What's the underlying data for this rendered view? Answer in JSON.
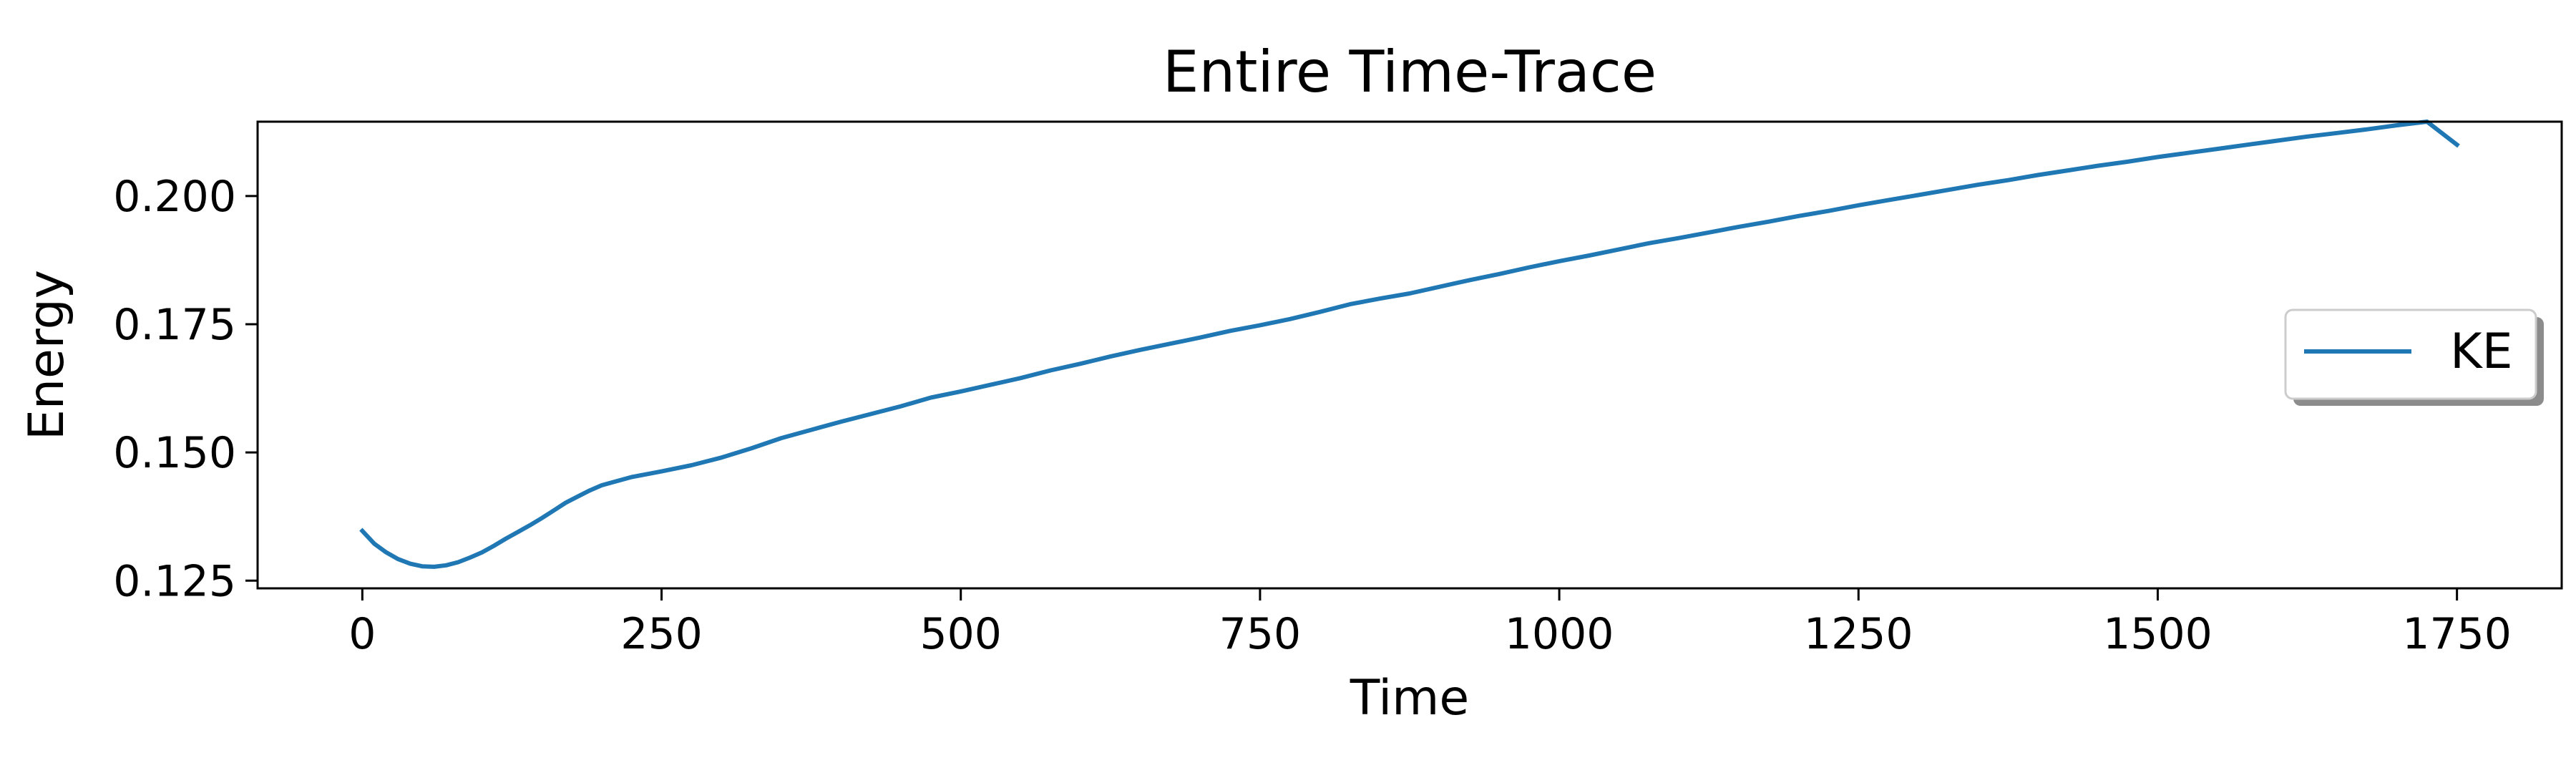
{
  "chart_data": {
    "type": "line",
    "title": "Entire Time-Trace",
    "xlabel": "Time",
    "ylabel": "Energy",
    "xlim": [
      -87.5,
      1837.5
    ],
    "ylim": [
      0.1235,
      0.2145
    ],
    "xticks": [
      0,
      250,
      500,
      750,
      1000,
      1250,
      1500,
      1750
    ],
    "xtick_labels": [
      "0",
      "250",
      "500",
      "750",
      "1000",
      "1250",
      "1500",
      "1750"
    ],
    "yticks": [
      0.125,
      0.15,
      0.175,
      0.2
    ],
    "ytick_labels": [
      "0.125",
      "0.150",
      "0.175",
      "0.200"
    ],
    "grid": false,
    "legend": {
      "placement": "center-right",
      "entries": [
        "KE"
      ]
    },
    "series": [
      {
        "name": "KE",
        "color": "#1f77b4",
        "x": [
          0,
          10,
          20,
          30,
          40,
          50,
          60,
          70,
          80,
          90,
          100,
          110,
          120,
          130,
          140,
          150,
          160,
          170,
          180,
          190,
          200,
          225,
          250,
          275,
          300,
          325,
          350,
          375,
          400,
          425,
          450,
          475,
          500,
          525,
          550,
          575,
          600,
          625,
          650,
          675,
          700,
          725,
          750,
          775,
          800,
          825,
          850,
          875,
          900,
          925,
          950,
          975,
          1000,
          1025,
          1050,
          1075,
          1100,
          1125,
          1150,
          1175,
          1200,
          1225,
          1250,
          1275,
          1300,
          1325,
          1350,
          1375,
          1400,
          1425,
          1450,
          1475,
          1500,
          1525,
          1550,
          1575,
          1600,
          1625,
          1650,
          1675,
          1700,
          1725,
          1750
        ],
        "y": [
          0.1347,
          0.1322,
          0.1305,
          0.1292,
          0.1283,
          0.1278,
          0.1277,
          0.128,
          0.1286,
          0.1295,
          0.1305,
          0.1318,
          0.1332,
          0.1345,
          0.1358,
          0.1372,
          0.1387,
          0.1402,
          0.1414,
          0.1426,
          0.1436,
          0.1452,
          0.1463,
          0.1475,
          0.149,
          0.1508,
          0.1528,
          0.1544,
          0.156,
          0.1575,
          0.159,
          0.1607,
          0.1619,
          0.1632,
          0.1645,
          0.166,
          0.1673,
          0.1687,
          0.17,
          0.1712,
          0.1724,
          0.1737,
          0.1748,
          0.176,
          0.1774,
          0.1789,
          0.18,
          0.181,
          0.1823,
          0.1836,
          0.1848,
          0.1861,
          0.1873,
          0.1884,
          0.1896,
          0.1908,
          0.1918,
          0.1929,
          0.194,
          0.195,
          0.1961,
          0.1971,
          0.1982,
          0.1992,
          0.2002,
          0.2012,
          0.2022,
          0.2031,
          0.2041,
          0.205,
          0.2059,
          0.2067,
          0.2076,
          0.2084,
          0.2092,
          0.21,
          0.2108,
          0.2116,
          0.2123,
          0.213,
          0.2138,
          0.2145,
          0.21
        ]
      }
    ]
  }
}
